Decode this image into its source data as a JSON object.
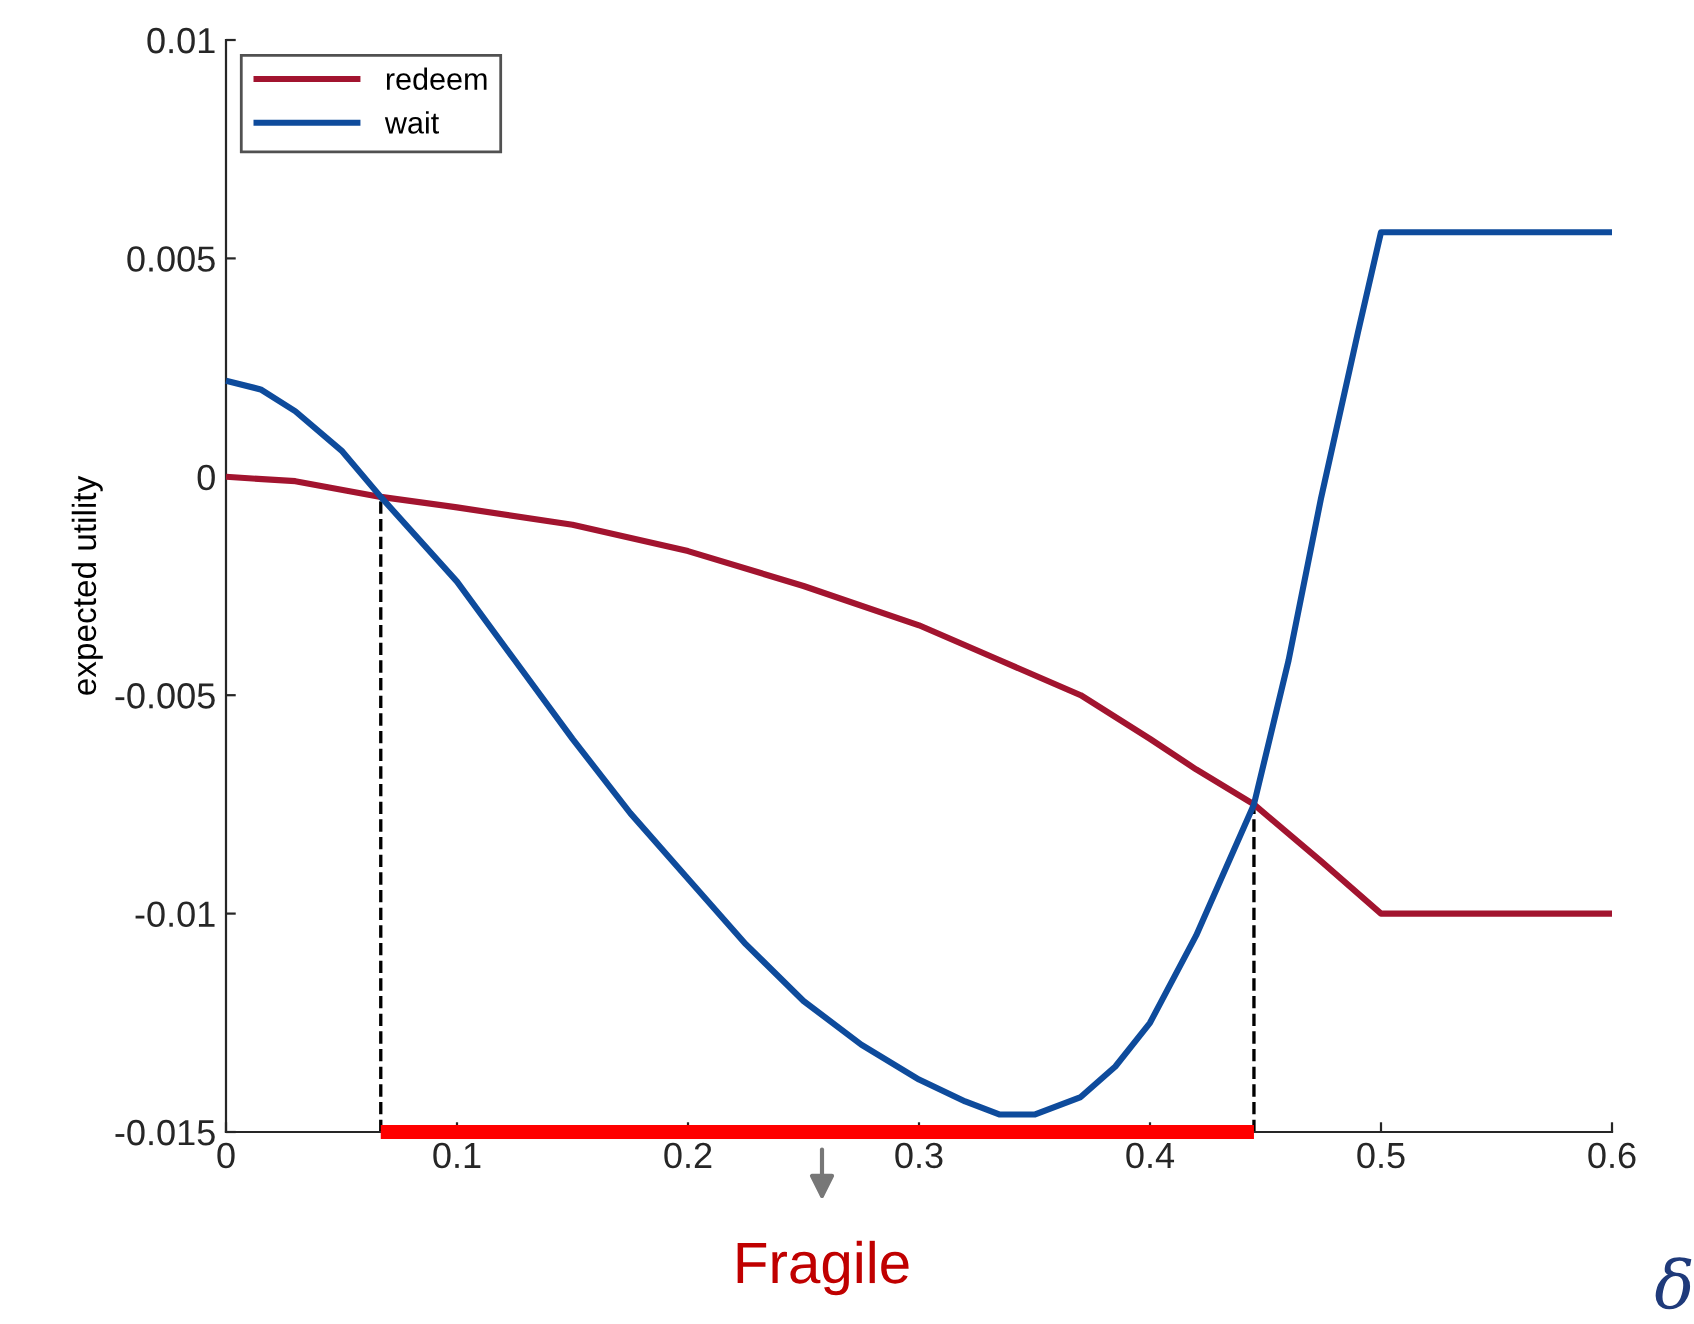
{
  "chart_data": {
    "type": "line",
    "xlabel": "δ",
    "ylabel": "expected utility",
    "x": [
      0,
      0.03,
      0.067,
      0.1,
      0.15,
      0.2,
      0.25,
      0.3,
      0.335,
      0.37,
      0.4,
      0.42,
      0.445,
      0.474,
      0.5,
      0.6
    ],
    "series": [
      {
        "name": "redeem",
        "color": "#a2142f",
        "values": [
          0,
          -0.0001,
          -0.00046,
          -0.0007,
          -0.0011,
          -0.0017,
          -0.0025,
          -0.0034,
          -0.0042,
          -0.005,
          -0.006,
          -0.0067,
          -0.0075,
          -0.0088,
          -0.01,
          -0.01
        ]
      },
      {
        "name": "wait",
        "color": "#0e4b9c",
        "x": [
          0,
          0.015,
          0.03,
          0.05,
          0.067,
          0.1,
          0.125,
          0.15,
          0.175,
          0.2,
          0.225,
          0.25,
          0.275,
          0.3,
          0.32,
          0.335,
          0.35,
          0.37,
          0.385,
          0.4,
          0.42,
          0.43,
          0.445,
          0.46,
          0.474,
          0.49,
          0.5,
          0.6
        ],
        "values": [
          0.0022,
          0.002,
          0.0015,
          0.0006,
          -0.00046,
          -0.0024,
          -0.0042,
          -0.006,
          -0.0077,
          -0.0092,
          -0.0107,
          -0.012,
          -0.013,
          -0.0138,
          -0.0143,
          -0.0146,
          -0.0146,
          -0.0142,
          -0.0135,
          -0.0125,
          -0.0105,
          -0.0093,
          -0.0075,
          -0.0042,
          -0.0005,
          0.0033,
          0.0056,
          0.0056
        ]
      },
      {
        "color": "#ff0000",
        "x": [
          0.067,
          0.445
        ],
        "values": [
          -0.015,
          -0.015
        ]
      }
    ],
    "xlim": [
      0,
      0.6
    ],
    "ylim": [
      -0.015,
      0.01
    ],
    "xticks": [
      0,
      0.1,
      0.2,
      0.3,
      0.4,
      0.5,
      0.6
    ],
    "yticks": [
      -0.015,
      -0.01,
      -0.005,
      0,
      0.005,
      0.01
    ],
    "ref_lines": [
      {
        "axis": "x",
        "value": 0.067,
        "color": "#000000",
        "line_style": "dashed"
      },
      {
        "axis": "x",
        "value": 0.445,
        "color": "#000000",
        "line_style": "dashed"
      }
    ],
    "annotations": [
      "Fragile"
    ],
    "legend": "top left",
    "grid": false,
    "marker": "none",
    "line_style": "solid"
  }
}
